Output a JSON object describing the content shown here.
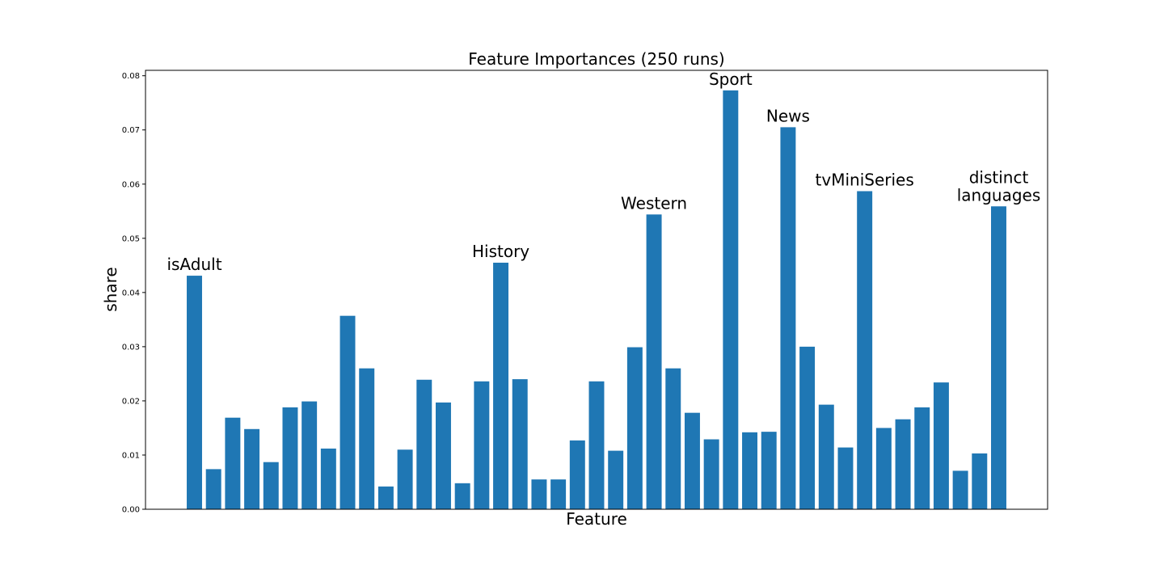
{
  "chart_data": {
    "type": "bar",
    "title": "Feature Importances (250 runs)",
    "xlabel": "Feature",
    "ylabel": "share",
    "ylim": [
      0,
      0.081
    ],
    "yticks": [
      "0.00",
      "0.01",
      "0.02",
      "0.03",
      "0.04",
      "0.05",
      "0.06",
      "0.07",
      "0.08"
    ],
    "bar_color": "#1f77b4",
    "grid": false,
    "values": [
      0.0431,
      0.0074,
      0.0169,
      0.0148,
      0.0087,
      0.0188,
      0.0199,
      0.0112,
      0.0357,
      0.026,
      0.0042,
      0.011,
      0.0239,
      0.0197,
      0.0048,
      0.0236,
      0.0455,
      0.024,
      0.0055,
      0.0055,
      0.0127,
      0.0236,
      0.0108,
      0.0299,
      0.0544,
      0.026,
      0.0178,
      0.0129,
      0.0773,
      0.0142,
      0.0143,
      0.0705,
      0.03,
      0.0193,
      0.0114,
      0.0587,
      0.015,
      0.0166,
      0.0188,
      0.0234,
      0.0071,
      0.0103,
      0.0559
    ],
    "annotations": [
      {
        "index": 0,
        "lines": [
          "isAdult"
        ]
      },
      {
        "index": 16,
        "lines": [
          "History"
        ]
      },
      {
        "index": 24,
        "lines": [
          "Western"
        ]
      },
      {
        "index": 28,
        "lines": [
          "Sport"
        ]
      },
      {
        "index": 31,
        "lines": [
          "News"
        ]
      },
      {
        "index": 35,
        "lines": [
          "tvMiniSeries"
        ]
      },
      {
        "index": 42,
        "lines": [
          "distinct",
          "languages"
        ]
      }
    ]
  }
}
